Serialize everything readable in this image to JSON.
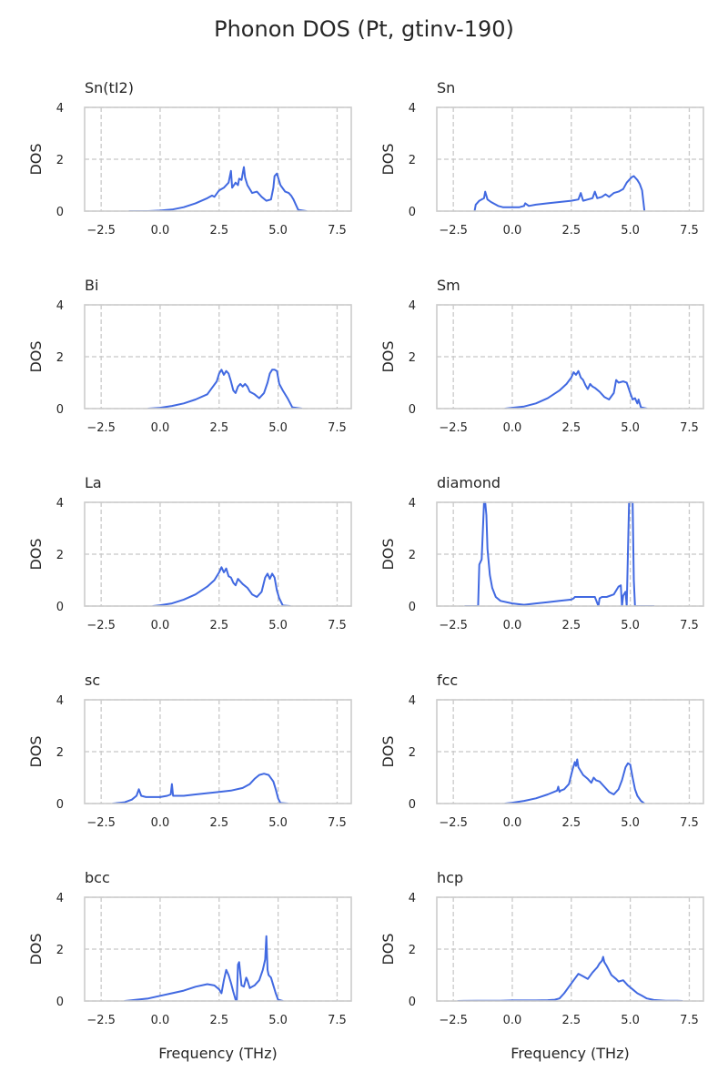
{
  "figure": {
    "title": "Phonon DOS (Pt, gtinv-190)",
    "line_color": "#4169e1"
  },
  "chart_data": [
    {
      "type": "line",
      "title": "Sn(tI2)",
      "ylabel": "DOS",
      "xlabel": "",
      "xlim": [
        -3.2,
        8.1
      ],
      "ylim": [
        0,
        4
      ],
      "xticks": [
        -2.5,
        0,
        2.5,
        5,
        7.5
      ],
      "xtick_labels": [
        "−2.5",
        "0.0",
        "2.5",
        "5.0",
        "7.5"
      ],
      "yticks": [
        0,
        2,
        4
      ],
      "ytick_labels": [
        "0",
        "2",
        "4"
      ],
      "grid": true,
      "x": [
        -1.3,
        -0.5,
        0,
        0.5,
        1,
        1.5,
        2,
        2.2,
        2.3,
        2.5,
        2.7,
        2.9,
        3.0,
        3.05,
        3.2,
        3.3,
        3.35,
        3.45,
        3.55,
        3.6,
        3.7,
        3.9,
        4.1,
        4.3,
        4.5,
        4.7,
        4.8,
        4.85,
        4.95,
        5.1,
        5.3,
        5.45,
        5.55,
        5.65,
        5.75,
        5.85,
        6.2
      ],
      "y": [
        0,
        0,
        0.02,
        0.06,
        0.15,
        0.3,
        0.5,
        0.6,
        0.55,
        0.8,
        0.9,
        1.1,
        1.55,
        0.9,
        1.1,
        1.0,
        1.25,
        1.2,
        1.7,
        1.3,
        1.0,
        0.7,
        0.75,
        0.55,
        0.4,
        0.45,
        0.9,
        1.35,
        1.45,
        1.0,
        0.75,
        0.7,
        0.6,
        0.45,
        0.25,
        0.05,
        0
      ]
    },
    {
      "type": "line",
      "title": "Sn",
      "ylabel": "DOS",
      "xlabel": "",
      "xlim": [
        -3.2,
        8.1
      ],
      "ylim": [
        0,
        4
      ],
      "xticks": [
        -2.5,
        0,
        2.5,
        5,
        7.5
      ],
      "xtick_labels": [
        "−2.5",
        "0.0",
        "2.5",
        "5.0",
        "7.5"
      ],
      "yticks": [
        0,
        2,
        4
      ],
      "ytick_labels": [
        "0",
        "2",
        "4"
      ],
      "grid": true,
      "x": [
        -1.6,
        -1.55,
        -1.4,
        -1.2,
        -1.15,
        -1.05,
        -0.9,
        -0.6,
        -0.4,
        -0.2,
        0,
        0.3,
        0.5,
        0.55,
        0.7,
        1,
        1.5,
        2,
        2.5,
        2.8,
        2.9,
        3.0,
        3.2,
        3.4,
        3.5,
        3.6,
        3.8,
        3.95,
        4.1,
        4.3,
        4.5,
        4.7,
        4.85,
        4.95,
        5.05,
        5.15,
        5.3,
        5.4,
        5.5,
        5.55,
        5.6
      ],
      "y": [
        0,
        0.25,
        0.4,
        0.5,
        0.75,
        0.45,
        0.35,
        0.2,
        0.15,
        0.15,
        0.15,
        0.15,
        0.2,
        0.3,
        0.2,
        0.25,
        0.3,
        0.35,
        0.4,
        0.45,
        0.7,
        0.4,
        0.45,
        0.5,
        0.75,
        0.5,
        0.55,
        0.65,
        0.55,
        0.7,
        0.75,
        0.85,
        1.1,
        1.2,
        1.3,
        1.35,
        1.2,
        1.05,
        0.8,
        0.4,
        0
      ]
    },
    {
      "type": "line",
      "title": "Bi",
      "ylabel": "DOS",
      "xlabel": "",
      "xlim": [
        -3.2,
        8.1
      ],
      "ylim": [
        0,
        4
      ],
      "xticks": [
        -2.5,
        0,
        2.5,
        5,
        7.5
      ],
      "xtick_labels": [
        "−2.5",
        "0.0",
        "2.5",
        "5.0",
        "7.5"
      ],
      "yticks": [
        0,
        2,
        4
      ],
      "ytick_labels": [
        "0",
        "2",
        "4"
      ],
      "grid": true,
      "x": [
        -0.5,
        0,
        0.5,
        1,
        1.5,
        2,
        2.2,
        2.4,
        2.5,
        2.6,
        2.7,
        2.8,
        2.9,
        3.0,
        3.1,
        3.2,
        3.3,
        3.4,
        3.5,
        3.6,
        3.7,
        3.8,
        4.0,
        4.2,
        4.4,
        4.55,
        4.65,
        4.75,
        4.85,
        4.95,
        5.05,
        5.2,
        5.4,
        5.6,
        6.0
      ],
      "y": [
        0,
        0.03,
        0.1,
        0.2,
        0.35,
        0.55,
        0.8,
        1.05,
        1.35,
        1.5,
        1.3,
        1.45,
        1.35,
        1.05,
        0.7,
        0.6,
        0.85,
        0.95,
        0.85,
        0.95,
        0.85,
        0.65,
        0.55,
        0.4,
        0.6,
        1.0,
        1.35,
        1.5,
        1.5,
        1.45,
        0.95,
        0.7,
        0.4,
        0.05,
        0
      ]
    },
    {
      "type": "line",
      "title": "Sm",
      "ylabel": "DOS",
      "xlabel": "",
      "xlim": [
        -3.2,
        8.1
      ],
      "ylim": [
        0,
        4
      ],
      "xticks": [
        -2.5,
        0,
        2.5,
        5,
        7.5
      ],
      "xtick_labels": [
        "−2.5",
        "0.0",
        "2.5",
        "5.0",
        "7.5"
      ],
      "yticks": [
        0,
        2,
        4
      ],
      "ytick_labels": [
        "0",
        "2",
        "4"
      ],
      "grid": true,
      "x": [
        -0.3,
        0,
        0.5,
        1,
        1.5,
        2,
        2.3,
        2.5,
        2.6,
        2.7,
        2.8,
        2.9,
        3.0,
        3.1,
        3.2,
        3.3,
        3.4,
        3.5,
        3.7,
        3.9,
        4.1,
        4.3,
        4.4,
        4.5,
        4.7,
        4.85,
        5.0,
        5.1,
        5.2,
        5.3,
        5.35,
        5.45,
        5.7
      ],
      "y": [
        0,
        0.03,
        0.08,
        0.2,
        0.4,
        0.7,
        0.95,
        1.2,
        1.4,
        1.3,
        1.45,
        1.2,
        1.1,
        0.9,
        0.75,
        0.95,
        0.85,
        0.8,
        0.65,
        0.45,
        0.35,
        0.6,
        1.1,
        1.0,
        1.05,
        1.0,
        0.6,
        0.35,
        0.4,
        0.2,
        0.35,
        0.05,
        0
      ]
    },
    {
      "type": "line",
      "title": "La",
      "ylabel": "DOS",
      "xlabel": "",
      "xlim": [
        -3.2,
        8.1
      ],
      "ylim": [
        0,
        4
      ],
      "xticks": [
        -2.5,
        0,
        2.5,
        5,
        7.5
      ],
      "xtick_labels": [
        "−2.5",
        "0.0",
        "2.5",
        "5.0",
        "7.5"
      ],
      "yticks": [
        0,
        2,
        4
      ],
      "ytick_labels": [
        "0",
        "2",
        "4"
      ],
      "grid": true,
      "x": [
        -0.3,
        0,
        0.5,
        1,
        1.5,
        2,
        2.3,
        2.5,
        2.6,
        2.7,
        2.8,
        2.9,
        3.0,
        3.1,
        3.2,
        3.3,
        3.4,
        3.5,
        3.7,
        3.9,
        4.1,
        4.3,
        4.45,
        4.55,
        4.65,
        4.75,
        4.85,
        4.95,
        5.05,
        5.2,
        5.5
      ],
      "y": [
        0,
        0.03,
        0.1,
        0.25,
        0.45,
        0.75,
        1.0,
        1.3,
        1.5,
        1.3,
        1.45,
        1.15,
        1.1,
        0.9,
        0.8,
        1.05,
        0.95,
        0.85,
        0.7,
        0.45,
        0.35,
        0.55,
        1.1,
        1.25,
        1.05,
        1.25,
        1.1,
        0.6,
        0.3,
        0.02,
        0
      ]
    },
    {
      "type": "line",
      "title": "diamond",
      "ylabel": "DOS",
      "xlabel": "",
      "xlim": [
        -3.2,
        8.1
      ],
      "ylim": [
        0,
        4
      ],
      "xticks": [
        -2.5,
        0,
        2.5,
        5,
        7.5
      ],
      "xtick_labels": [
        "−2.5",
        "0.0",
        "2.5",
        "5.0",
        "7.5"
      ],
      "yticks": [
        0,
        2,
        4
      ],
      "ytick_labels": [
        "0",
        "2",
        "4"
      ],
      "grid": true,
      "x": [
        -2.0,
        -1.45,
        -1.4,
        -1.3,
        -1.2,
        -1.15,
        -1.1,
        -1.05,
        -0.95,
        -0.85,
        -0.7,
        -0.5,
        0,
        0.5,
        1,
        1.5,
        2,
        2.5,
        2.6,
        2.65,
        3,
        3.5,
        3.65,
        3.7,
        3.8,
        4.0,
        4.3,
        4.5,
        4.6,
        4.65,
        4.7,
        4.8,
        4.85,
        4.9,
        4.95,
        5.0,
        5.1,
        5.15,
        5.2,
        5.3,
        6.0
      ],
      "y": [
        0,
        0,
        1.6,
        1.8,
        4.0,
        4.0,
        3.5,
        2.2,
        1.2,
        0.7,
        0.35,
        0.2,
        0.1,
        0.05,
        0.1,
        0.15,
        0.2,
        0.25,
        0.3,
        0.35,
        0.35,
        0.35,
        0.0,
        0.3,
        0.35,
        0.35,
        0.45,
        0.75,
        0.8,
        0.0,
        0.4,
        0.55,
        0.0,
        2.0,
        4.0,
        4.0,
        4.0,
        1.0,
        0.0,
        0,
        0
      ]
    },
    {
      "type": "line",
      "title": "sc",
      "ylabel": "DOS",
      "xlabel": "",
      "xlim": [
        -3.2,
        8.1
      ],
      "ylim": [
        0,
        4
      ],
      "xticks": [
        -2.5,
        0,
        2.5,
        5,
        7.5
      ],
      "xtick_labels": [
        "−2.5",
        "0.0",
        "2.5",
        "5.0",
        "7.5"
      ],
      "yticks": [
        0,
        2,
        4
      ],
      "ytick_labels": [
        "0",
        "2",
        "4"
      ],
      "grid": true,
      "x": [
        -2.0,
        -1.5,
        -1.2,
        -1.0,
        -0.9,
        -0.8,
        -0.6,
        -0.3,
        0,
        0.3,
        0.45,
        0.5,
        0.55,
        0.7,
        1,
        1.5,
        2,
        2.5,
        3,
        3.5,
        3.8,
        4,
        4.2,
        4.4,
        4.6,
        4.8,
        4.9,
        5.0,
        5.1,
        5.4
      ],
      "y": [
        0,
        0.05,
        0.15,
        0.3,
        0.55,
        0.3,
        0.25,
        0.25,
        0.25,
        0.3,
        0.35,
        0.75,
        0.3,
        0.3,
        0.3,
        0.35,
        0.4,
        0.45,
        0.5,
        0.6,
        0.75,
        0.95,
        1.1,
        1.15,
        1.1,
        0.85,
        0.55,
        0.2,
        0.02,
        0
      ]
    },
    {
      "type": "line",
      "title": "fcc",
      "ylabel": "DOS",
      "xlabel": "",
      "xlim": [
        -3.2,
        8.1
      ],
      "ylim": [
        0,
        4
      ],
      "xticks": [
        -2.5,
        0,
        2.5,
        5,
        7.5
      ],
      "xtick_labels": [
        "−2.5",
        "0.0",
        "2.5",
        "5.0",
        "7.5"
      ],
      "yticks": [
        0,
        2,
        4
      ],
      "ytick_labels": [
        "0",
        "2",
        "4"
      ],
      "grid": true,
      "x": [
        -0.3,
        0,
        0.5,
        1,
        1.5,
        1.9,
        1.95,
        2.0,
        2.05,
        2.2,
        2.4,
        2.55,
        2.65,
        2.7,
        2.75,
        2.8,
        2.9,
        3.0,
        3.2,
        3.35,
        3.45,
        3.55,
        3.7,
        3.9,
        4.1,
        4.3,
        4.5,
        4.65,
        4.8,
        4.9,
        5.0,
        5.1,
        5.2,
        5.3,
        5.45,
        5.6
      ],
      "y": [
        0,
        0.03,
        0.1,
        0.2,
        0.35,
        0.5,
        0.65,
        0.45,
        0.5,
        0.55,
        0.75,
        1.3,
        1.6,
        1.45,
        1.7,
        1.4,
        1.25,
        1.1,
        0.95,
        0.8,
        1.0,
        0.9,
        0.85,
        0.65,
        0.45,
        0.35,
        0.55,
        0.9,
        1.4,
        1.55,
        1.5,
        1.0,
        0.55,
        0.3,
        0.1,
        0
      ]
    },
    {
      "type": "line",
      "title": "bcc",
      "ylabel": "DOS",
      "xlabel": "",
      "xlim": [
        -3.2,
        8.1
      ],
      "ylim": [
        0,
        4
      ],
      "xticks": [
        -2.5,
        0,
        2.5,
        5,
        7.5
      ],
      "xtick_labels": [
        "−2.5",
        "0.0",
        "2.5",
        "5.0",
        "7.5"
      ],
      "yticks": [
        0,
        2,
        4
      ],
      "ytick_labels": [
        "0",
        "2",
        "4"
      ],
      "grid": true,
      "x": [
        -1.5,
        -1,
        -0.5,
        0,
        0.5,
        1,
        1.5,
        2,
        2.3,
        2.5,
        2.6,
        2.7,
        2.8,
        2.9,
        3.0,
        3.1,
        3.2,
        3.25,
        3.3,
        3.35,
        3.45,
        3.55,
        3.65,
        3.7,
        3.8,
        3.9,
        4.0,
        4.2,
        4.35,
        4.45,
        4.5,
        4.55,
        4.6,
        4.7,
        4.8,
        4.9,
        5.0,
        5.2
      ],
      "y": [
        0,
        0.05,
        0.1,
        0.2,
        0.3,
        0.4,
        0.55,
        0.65,
        0.6,
        0.45,
        0.3,
        0.8,
        1.2,
        1.0,
        0.7,
        0.35,
        0.05,
        0.0,
        1.4,
        1.5,
        0.6,
        0.55,
        0.9,
        0.8,
        0.5,
        0.55,
        0.6,
        0.8,
        1.2,
        1.6,
        2.5,
        1.2,
        1.0,
        0.9,
        0.6,
        0.3,
        0.05,
        0
      ]
    },
    {
      "type": "line",
      "title": "hcp",
      "ylabel": "DOS",
      "xlabel": "",
      "xlim": [
        -3.2,
        8.1
      ],
      "ylim": [
        0,
        4
      ],
      "xticks": [
        -2.5,
        0,
        2.5,
        5,
        7.5
      ],
      "xtick_labels": [
        "−2.5",
        "0.0",
        "2.5",
        "5.0",
        "7.5"
      ],
      "yticks": [
        0,
        2,
        4
      ],
      "ytick_labels": [
        "0",
        "2",
        "4"
      ],
      "grid": true,
      "x": [
        -2.3,
        -1.5,
        -0.5,
        0,
        0.5,
        1,
        1.5,
        1.8,
        2.0,
        2.2,
        2.4,
        2.6,
        2.8,
        3.0,
        3.2,
        3.4,
        3.6,
        3.7,
        3.8,
        3.85,
        3.9,
        4.0,
        4.2,
        4.4,
        4.5,
        4.7,
        4.9,
        5.1,
        5.3,
        5.5,
        5.7,
        6.0,
        6.5,
        7.0,
        7.2
      ],
      "y": [
        0,
        0.01,
        0.01,
        0.02,
        0.02,
        0.02,
        0.03,
        0.05,
        0.1,
        0.3,
        0.55,
        0.8,
        1.05,
        0.95,
        0.85,
        1.1,
        1.3,
        1.45,
        1.55,
        1.7,
        1.5,
        1.35,
        1.0,
        0.85,
        0.75,
        0.8,
        0.6,
        0.45,
        0.3,
        0.2,
        0.1,
        0.04,
        0.01,
        0.01,
        0
      ]
    }
  ],
  "xlabel_bottom": [
    "Frequency (THz)",
    "Frequency (THz)"
  ]
}
